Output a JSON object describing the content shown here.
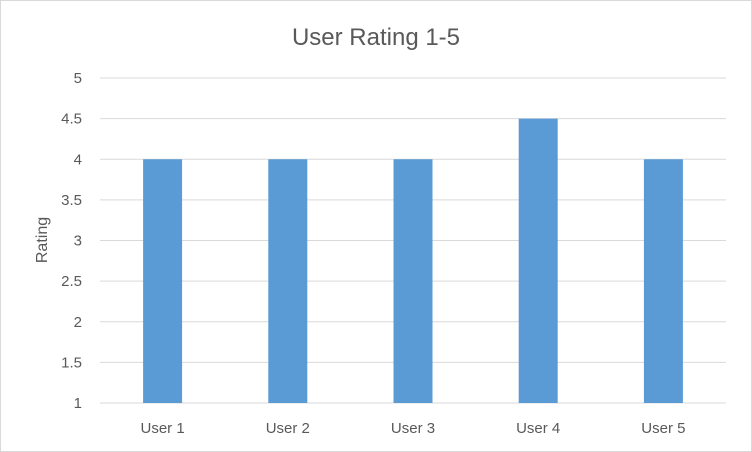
{
  "chart_data": {
    "type": "bar",
    "title": "User Rating 1-5",
    "xlabel": "",
    "ylabel": "Rating",
    "categories": [
      "User 1",
      "User 2",
      "User 3",
      "User 4",
      "User 5"
    ],
    "values": [
      4,
      4,
      4,
      4.5,
      4
    ],
    "ylim": [
      1,
      5
    ],
    "yticks": [
      "1",
      "1.5",
      "2",
      "2.5",
      "3",
      "3.5",
      "4",
      "4.5",
      "5"
    ],
    "grid": true,
    "legend": "none",
    "bar_color": "#5b9bd5"
  }
}
